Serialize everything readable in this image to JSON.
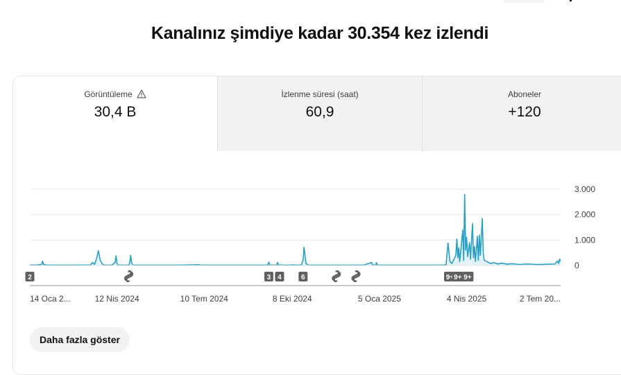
{
  "header": {
    "headline": "Kanalınız şimdiye kadar 30.354 kez izlendi"
  },
  "tabs": [
    {
      "label": "Görüntüleme",
      "value": "30,4 B",
      "warning": true,
      "active": true
    },
    {
      "label": "İzlenme süresi (saat)",
      "value": "60,9",
      "warning": false,
      "active": false
    },
    {
      "label": "Aboneler",
      "value": "+120",
      "warning": false,
      "active": false
    }
  ],
  "show_more_label": "Daha fazla göster",
  "colors": {
    "line": "#27a0c8",
    "fill": "#e3f3f9",
    "grid": "#e5e5e5",
    "axis": "#909090"
  },
  "chart_data": {
    "type": "area",
    "title": "",
    "xlabel": "",
    "ylabel": "",
    "x_range": [
      "2024-01-14",
      "2025-07-09"
    ],
    "y_ticks": [
      {
        "value": 0,
        "label": "0"
      },
      {
        "value": 1000,
        "label": "1.000"
      },
      {
        "value": 2000,
        "label": "2.000"
      },
      {
        "value": 3000,
        "label": "3.000"
      }
    ],
    "ylim": [
      0,
      3000
    ],
    "x_ticks": [
      {
        "date": "2024-01-14",
        "label": "14 Oca 2..."
      },
      {
        "date": "2024-04-12",
        "label": "12 Nis 2024"
      },
      {
        "date": "2024-07-10",
        "label": "10 Tem 2024"
      },
      {
        "date": "2024-10-08",
        "label": "8 Eki 2024"
      },
      {
        "date": "2025-01-05",
        "label": "5 Oca 2025"
      },
      {
        "date": "2025-04-04",
        "label": "4 Nis 2025"
      },
      {
        "date": "2025-07-02",
        "label": "2 Tem 20..."
      }
    ],
    "grid": true,
    "series": [
      {
        "points": [
          [
            "2024-01-14",
            20
          ],
          [
            "2024-01-20",
            15
          ],
          [
            "2024-01-26",
            40
          ],
          [
            "2024-01-27",
            170
          ],
          [
            "2024-01-28",
            40
          ],
          [
            "2024-02-01",
            15
          ],
          [
            "2024-03-01",
            15
          ],
          [
            "2024-03-16",
            20
          ],
          [
            "2024-03-18",
            120
          ],
          [
            "2024-03-20",
            40
          ],
          [
            "2024-03-22",
            250
          ],
          [
            "2024-03-24",
            580
          ],
          [
            "2024-03-26",
            200
          ],
          [
            "2024-03-28",
            60
          ],
          [
            "2024-03-30",
            20
          ],
          [
            "2024-04-07",
            15
          ],
          [
            "2024-04-10",
            120
          ],
          [
            "2024-04-11",
            380
          ],
          [
            "2024-04-12",
            80
          ],
          [
            "2024-04-13",
            20
          ],
          [
            "2024-04-24",
            15
          ],
          [
            "2024-04-25",
            100
          ],
          [
            "2024-04-26",
            400
          ],
          [
            "2024-04-27",
            100
          ],
          [
            "2024-04-28",
            20
          ],
          [
            "2024-06-15",
            15
          ],
          [
            "2024-07-05",
            30
          ],
          [
            "2024-07-06",
            15
          ],
          [
            "2024-09-10",
            15
          ],
          [
            "2024-09-13",
            20
          ],
          [
            "2024-09-14",
            130
          ],
          [
            "2024-09-15",
            20
          ],
          [
            "2024-09-22",
            10
          ],
          [
            "2024-09-23",
            120
          ],
          [
            "2024-09-24",
            15
          ],
          [
            "2024-10-06",
            15
          ],
          [
            "2024-10-10",
            25
          ],
          [
            "2024-10-11",
            15
          ],
          [
            "2024-10-17",
            15
          ],
          [
            "2024-10-19",
            200
          ],
          [
            "2024-10-20",
            720
          ],
          [
            "2024-10-21",
            400
          ],
          [
            "2024-10-22",
            80
          ],
          [
            "2024-10-24",
            20
          ],
          [
            "2024-11-10",
            15
          ],
          [
            "2024-12-20",
            15
          ],
          [
            "2024-12-28",
            120
          ],
          [
            "2024-12-29",
            15
          ],
          [
            "2025-01-01",
            20
          ],
          [
            "2025-01-02",
            110
          ],
          [
            "2025-01-03",
            15
          ],
          [
            "2025-03-10",
            15
          ],
          [
            "2025-03-14",
            30
          ],
          [
            "2025-03-16",
            880
          ],
          [
            "2025-03-18",
            150
          ],
          [
            "2025-03-20",
            80
          ],
          [
            "2025-03-24",
            400
          ],
          [
            "2025-03-25",
            1050
          ],
          [
            "2025-03-26",
            300
          ],
          [
            "2025-03-27",
            700
          ],
          [
            "2025-03-28",
            150
          ],
          [
            "2025-03-31",
            1400
          ],
          [
            "2025-04-01",
            200
          ],
          [
            "2025-04-02",
            2800
          ],
          [
            "2025-04-03",
            600
          ],
          [
            "2025-04-04",
            1100
          ],
          [
            "2025-04-05",
            350
          ],
          [
            "2025-04-07",
            900
          ],
          [
            "2025-04-08",
            250
          ],
          [
            "2025-04-10",
            1650
          ],
          [
            "2025-04-11",
            300
          ],
          [
            "2025-04-12",
            750
          ],
          [
            "2025-04-13",
            150
          ],
          [
            "2025-04-15",
            1150
          ],
          [
            "2025-04-16",
            200
          ],
          [
            "2025-04-17",
            1200
          ],
          [
            "2025-04-18",
            400
          ],
          [
            "2025-04-20",
            1850
          ],
          [
            "2025-04-21",
            500
          ],
          [
            "2025-04-22",
            200
          ],
          [
            "2025-04-25",
            150
          ],
          [
            "2025-04-28",
            80
          ],
          [
            "2025-05-02",
            110
          ],
          [
            "2025-05-06",
            60
          ],
          [
            "2025-05-10",
            90
          ],
          [
            "2025-05-15",
            50
          ],
          [
            "2025-05-20",
            70
          ],
          [
            "2025-05-28",
            40
          ],
          [
            "2025-06-05",
            60
          ],
          [
            "2025-06-15",
            40
          ],
          [
            "2025-06-25",
            50
          ],
          [
            "2025-07-03",
            60
          ],
          [
            "2025-07-06",
            180
          ],
          [
            "2025-07-07",
            80
          ],
          [
            "2025-07-08",
            250
          ],
          [
            "2025-07-09",
            170
          ]
        ]
      }
    ],
    "markers": [
      {
        "date": "2024-01-14",
        "label": "2",
        "kind": "count"
      },
      {
        "date": "2024-04-24",
        "label": "",
        "kind": "shorts"
      },
      {
        "date": "2024-09-14",
        "label": "3",
        "kind": "count"
      },
      {
        "date": "2024-09-25",
        "label": "4",
        "kind": "count"
      },
      {
        "date": "2024-10-19",
        "label": "6",
        "kind": "count"
      },
      {
        "date": "2024-11-22",
        "label": "",
        "kind": "shorts"
      },
      {
        "date": "2024-12-12",
        "label": "",
        "kind": "shorts"
      },
      {
        "date": "2025-03-18",
        "label": "9+",
        "kind": "count"
      },
      {
        "date": "2025-03-26",
        "label": "9+",
        "kind": "count"
      },
      {
        "date": "2025-04-05",
        "label": "9+",
        "kind": "count"
      }
    ]
  }
}
